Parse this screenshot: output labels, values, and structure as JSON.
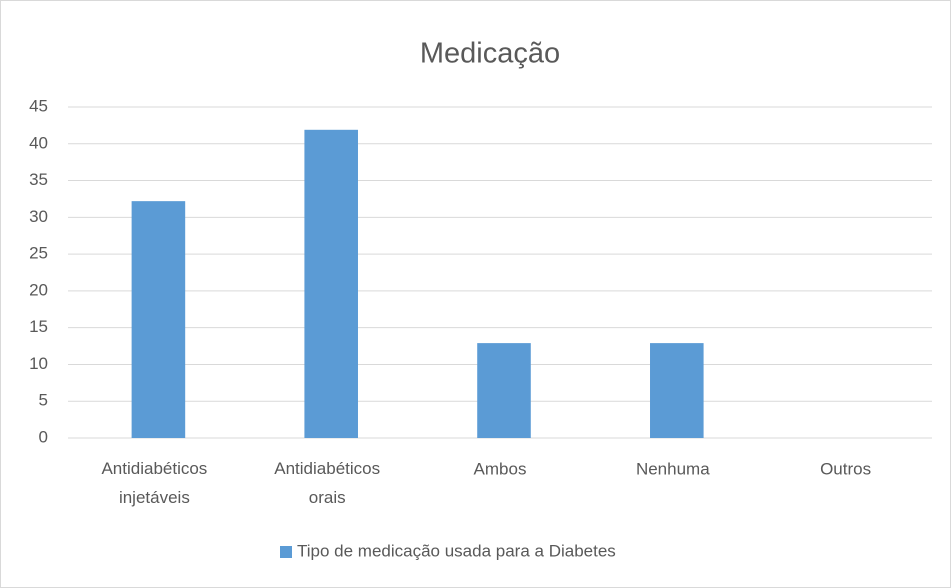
{
  "chart_data": {
    "type": "bar",
    "title": "Medicação",
    "categories": [
      "Antidiabéticos injetáveis",
      "Antidiabéticos orais",
      "Ambos",
      "Nenhuma",
      "Outros"
    ],
    "series": [
      {
        "name": "Tipo de medicação usada para a Diabetes",
        "color": "#5b9bd5",
        "values": [
          32.2,
          41.9,
          12.9,
          12.9,
          0
        ]
      }
    ],
    "ylim": [
      0,
      45
    ],
    "yticks": [
      0,
      5,
      10,
      15,
      20,
      25,
      30,
      35,
      40,
      45
    ],
    "grid": true,
    "legend": "bottom"
  }
}
